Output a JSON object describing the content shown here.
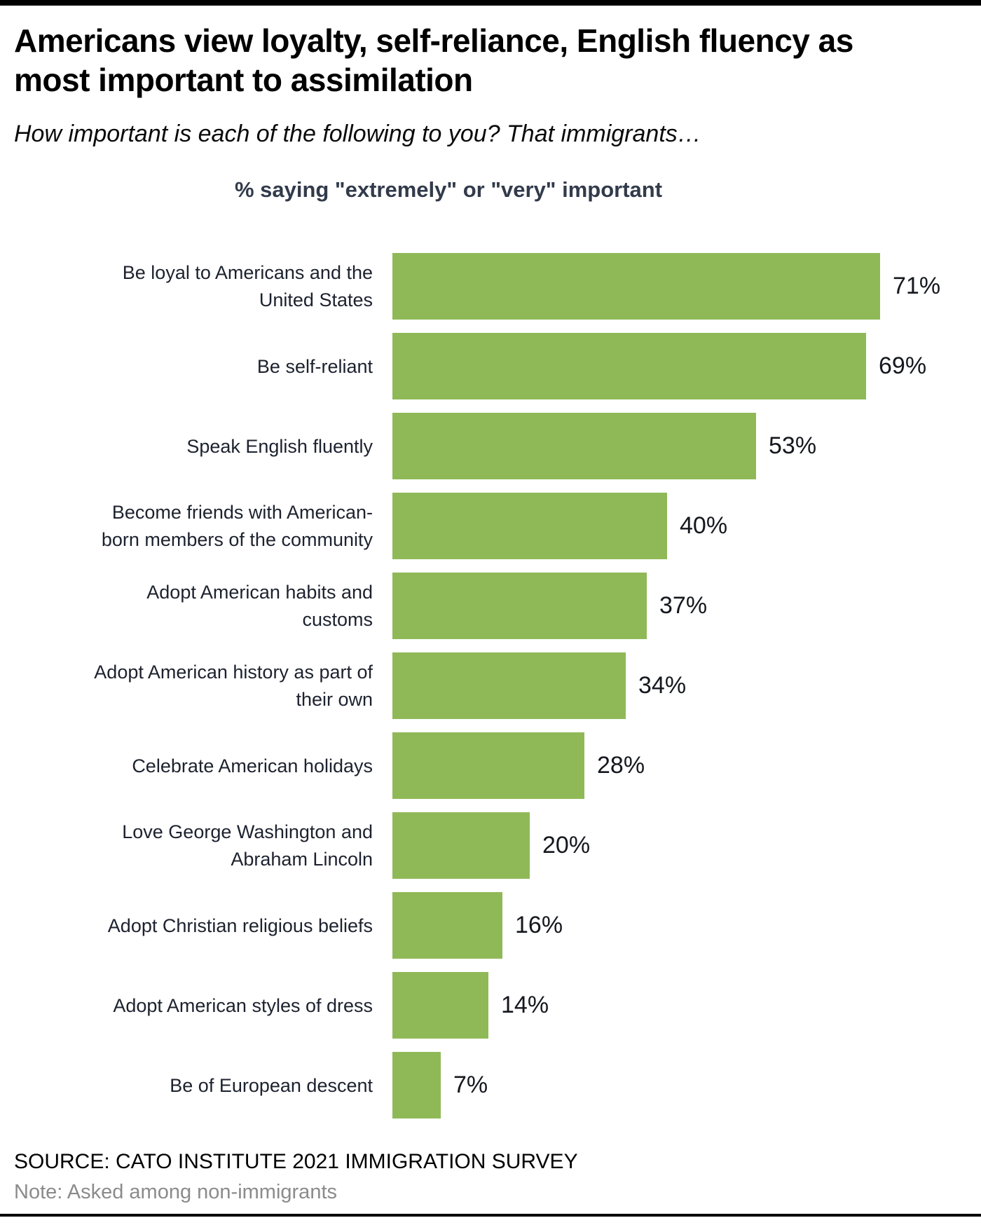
{
  "page": {
    "title": "Americans view loyalty, self-reliance, English fluency as most important to assimilation",
    "subtitle": "How important is each of the following to you? That immigrants…"
  },
  "chart_data": {
    "type": "bar",
    "orientation": "horizontal",
    "axis_title": "% saying \"extremely\" or \"very\" important",
    "categories": [
      "Be loyal to Americans and the\nUnited States",
      "Be self-reliant",
      "Speak English fluently",
      "Become friends with American-\nborn members of the community",
      "Adopt American habits and\ncustoms",
      "Adopt American history as part of\ntheir own",
      "Celebrate American holidays",
      "Love George Washington and\nAbraham Lincoln",
      "Adopt Christian religious beliefs",
      "Adopt American styles of dress",
      "Be of European descent"
    ],
    "values": [
      71,
      69,
      53,
      40,
      37,
      34,
      28,
      20,
      16,
      14,
      7
    ],
    "value_suffix": "%",
    "bar_color": "#8FB957",
    "xlim": [
      0,
      80
    ],
    "grid": false,
    "legend": false,
    "value_labels_position": "outside-end"
  },
  "footer": {
    "source": "SOURCE: CATO INSTITUTE 2021 IMMIGRATION SURVEY",
    "note": "Note: Asked among non-immigrants"
  }
}
